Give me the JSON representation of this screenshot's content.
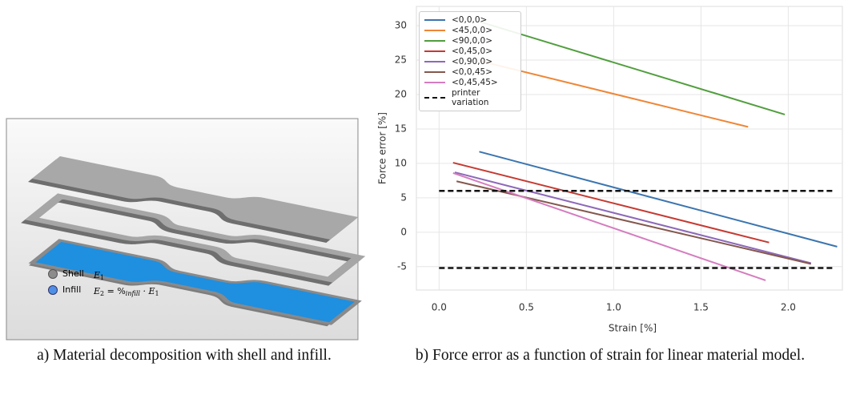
{
  "figure_a": {
    "legend": [
      {
        "label": "Shell",
        "symbol": [
          "E",
          "1"
        ]
      },
      {
        "label": "Infill",
        "symbol": [
          "E",
          "2",
          " = %",
          "infill",
          " · E",
          "1"
        ]
      }
    ]
  },
  "chart_data": {
    "type": "line",
    "xlabel": "Strain [%]",
    "ylabel": "Force error [%]",
    "xlim": [
      -0.13,
      2.31
    ],
    "ylim": [
      -8.4,
      32.8
    ],
    "xticks": [
      {
        "value": 0,
        "label": "0.0"
      },
      0.5,
      {
        "value": 1,
        "label": "1.0"
      },
      1.5,
      {
        "value": 2,
        "label": "2.0"
      }
    ],
    "yticks": [
      -5,
      0,
      5,
      10,
      15,
      20,
      25,
      30
    ],
    "grid": true,
    "legend": "upper left",
    "series": [
      {
        "name": "<0,0,0>",
        "color": "#3b75af",
        "x": [
          0.23,
          2.28
        ],
        "values": [
          11.7,
          -2.1
        ]
      },
      {
        "name": "<45,0,0>",
        "color": "#ef8636",
        "x": [
          0.23,
          1.77
        ],
        "values": [
          24.9,
          15.3
        ]
      },
      {
        "name": "<90,0,0>",
        "color": "#519e3e",
        "x": [
          0.23,
          1.98
        ],
        "values": [
          30.6,
          17.1
        ]
      },
      {
        "name": "<0,45,0>",
        "color": "#c53a32",
        "x": [
          0.08,
          1.89
        ],
        "values": [
          10.1,
          -1.5
        ]
      },
      {
        "name": "<0,90,0>",
        "color": "#8d69b8",
        "x": [
          0.09,
          2.13
        ],
        "values": [
          8.7,
          -4.5
        ]
      },
      {
        "name": "<0,0,45>",
        "color": "#84584e",
        "x": [
          0.1,
          2.13
        ],
        "values": [
          7.4,
          -4.6
        ]
      },
      {
        "name": "<0,45,45>",
        "color": "#d57dbf",
        "x": [
          0.08,
          1.87
        ],
        "values": [
          8.6,
          -7.0
        ]
      },
      {
        "name": "printer variation",
        "color": "#111111",
        "linestyle": "dashed",
        "x": [
          0,
          2.26,
          null,
          0,
          2.26
        ],
        "values": [
          6,
          6,
          null,
          -5.2,
          -5.2
        ]
      }
    ]
  },
  "captions": [
    "a) Material decomposition with shell and infill.",
    "b) Force error as a function of strain for linear material model."
  ]
}
